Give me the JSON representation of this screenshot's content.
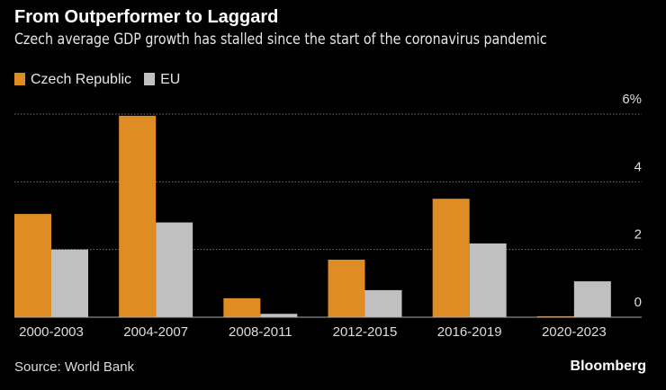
{
  "title": "From Outperformer to Laggard",
  "subtitle": "Czech average GDP growth has stalled since the start of the coronavirus pandemic",
  "source": "Source: World Bank",
  "logo": "Bloomberg",
  "colors": {
    "czech": "#e08c25",
    "eu": "#c0c0c0",
    "grid": "#777777"
  },
  "chart_data": {
    "type": "bar",
    "categories": [
      "2000-2003",
      "2004-2007",
      "2008-2011",
      "2012-2015",
      "2016-2019",
      "2020-2023"
    ],
    "series": [
      {
        "name": "Czech Republic",
        "values": [
          3.05,
          5.95,
          0.56,
          1.7,
          3.5,
          0.03
        ]
      },
      {
        "name": "EU",
        "values": [
          2.0,
          2.8,
          0.1,
          0.8,
          2.18,
          1.06
        ]
      }
    ],
    "yticks": [
      "0",
      "2",
      "4",
      "6%"
    ],
    "ytick_values": [
      0,
      2,
      4,
      6
    ],
    "ylim": [
      0,
      6
    ],
    "grid": true,
    "legend_placement": "top-left",
    "title": "From Outperformer to Laggard",
    "xlabel": "",
    "ylabel": ""
  }
}
